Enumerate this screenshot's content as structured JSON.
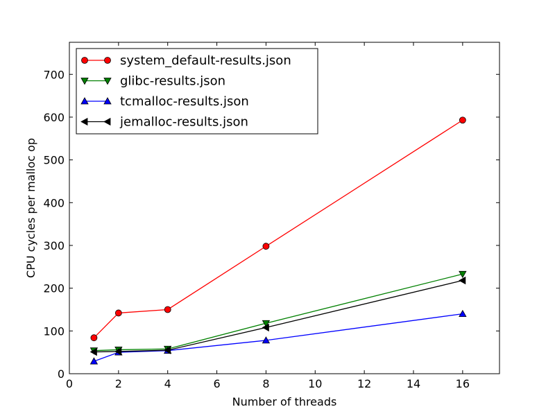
{
  "chart_data": {
    "type": "line",
    "title": "",
    "xlabel": "Number of threads",
    "ylabel": "CPU cycles per malloc op",
    "xlim": [
      0,
      17.5
    ],
    "ylim": [
      0,
      775
    ],
    "xticks": [
      0,
      2,
      4,
      6,
      8,
      10,
      12,
      14,
      16
    ],
    "yticks": [
      0,
      100,
      200,
      300,
      400,
      500,
      600,
      700
    ],
    "grid": false,
    "legend_position": "top-left",
    "series": [
      {
        "name": "system_default-results.json",
        "color": "#ff0000",
        "marker": "circle",
        "x": [
          1,
          2,
          4,
          8,
          16
        ],
        "y": [
          84,
          142,
          150,
          298,
          593
        ]
      },
      {
        "name": "glibc-results.json",
        "color": "#008000",
        "marker": "triangle-down",
        "x": [
          1,
          2,
          4,
          8,
          16
        ],
        "y": [
          54,
          56,
          58,
          118,
          233
        ]
      },
      {
        "name": "tcmalloc-results.json",
        "color": "#0000ff",
        "marker": "triangle-up",
        "x": [
          1,
          2,
          4,
          8,
          16
        ],
        "y": [
          29,
          50,
          54,
          78,
          140
        ]
      },
      {
        "name": "jemalloc-results.json",
        "color": "#000000",
        "marker": "triangle-left",
        "x": [
          1,
          2,
          4,
          8,
          16
        ],
        "y": [
          51,
          52,
          55,
          108,
          218
        ]
      }
    ]
  }
}
